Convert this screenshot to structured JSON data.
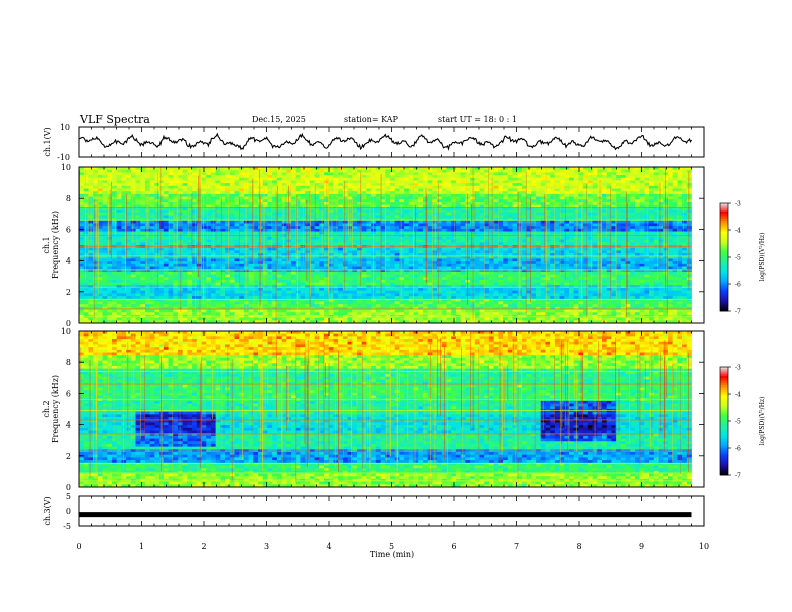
{
  "header": {
    "title": "VLF Spectra",
    "date": "Dec.15, 2025",
    "station": "station= KAP",
    "start_ut": "start  UT =   18: 0  : 1"
  },
  "colorbar": {
    "label": "log(PSD)(V²/Hz)",
    "ticks": [
      -7,
      -6,
      -5,
      -4,
      -3
    ],
    "colormap": [
      "#000000",
      "#1a10a8",
      "#0a3cff",
      "#00a8ff",
      "#00e6e6",
      "#20f0a0",
      "#40ff40",
      "#c8ff20",
      "#ffff00",
      "#ff9000",
      "#ff0000",
      "#e8e8e8"
    ]
  },
  "chart_data": [
    {
      "type": "line",
      "panel": "ch1_waveform",
      "ylabel": "ch.1(V)",
      "ylim": [
        -10,
        10
      ],
      "yticks": [
        10,
        -10
      ],
      "xlim": [
        0,
        10
      ],
      "series": [
        {
          "name": "ch.1",
          "x_range": [
            0,
            9.8
          ],
          "mean": 0,
          "amplitude_V": 3.5
        }
      ]
    },
    {
      "type": "heatmap",
      "panel": "ch1_spectrogram",
      "ylabel": "ch.1",
      "ylabel2": "Frequency  (kHz)",
      "ylim": [
        0,
        10
      ],
      "yticks": [
        0,
        2,
        4,
        6,
        8,
        10
      ],
      "xlim": [
        0,
        10
      ],
      "data_xmax": 9.8,
      "zlim": [
        -7,
        -3
      ],
      "bands": [
        {
          "f0": 0.0,
          "f1": 0.9,
          "level": -4.6
        },
        {
          "f0": 0.9,
          "f1": 1.5,
          "level": -4.9
        },
        {
          "f0": 1.5,
          "f1": 2.4,
          "level": -5.6
        },
        {
          "f0": 2.4,
          "f1": 3.3,
          "level": -5.0
        },
        {
          "f0": 3.3,
          "f1": 4.2,
          "level": -5.8
        },
        {
          "f0": 4.2,
          "f1": 5.0,
          "level": -5.6
        },
        {
          "f0": 5.0,
          "f1": 5.8,
          "level": -5.3
        },
        {
          "f0": 5.8,
          "f1": 6.6,
          "level": -6.0
        },
        {
          "f0": 6.6,
          "f1": 7.4,
          "level": -5.2
        },
        {
          "f0": 7.4,
          "f1": 8.2,
          "level": -4.8
        },
        {
          "f0": 8.2,
          "f1": 10.0,
          "level": -4.4
        }
      ]
    },
    {
      "type": "heatmap",
      "panel": "ch2_spectrogram",
      "ylabel": "ch.2",
      "ylabel2": "Frequency  (kHz)",
      "ylim": [
        0,
        10
      ],
      "yticks": [
        0,
        2,
        4,
        6,
        8,
        10
      ],
      "xlim": [
        0,
        10
      ],
      "data_xmax": 9.8,
      "zlim": [
        -7,
        -3
      ],
      "bands": [
        {
          "f0": 0.0,
          "f1": 0.9,
          "level": -4.6
        },
        {
          "f0": 0.9,
          "f1": 1.6,
          "level": -5.0
        },
        {
          "f0": 1.6,
          "f1": 2.4,
          "level": -5.9
        },
        {
          "f0": 2.4,
          "f1": 3.5,
          "level": -5.2
        },
        {
          "f0": 3.5,
          "f1": 4.6,
          "level": -5.5
        },
        {
          "f0": 4.6,
          "f1": 5.5,
          "level": -5.2
        },
        {
          "f0": 5.5,
          "f1": 6.5,
          "level": -5.0
        },
        {
          "f0": 6.5,
          "f1": 7.6,
          "level": -5.1
        },
        {
          "f0": 7.6,
          "f1": 8.5,
          "level": -4.6
        },
        {
          "f0": 8.5,
          "f1": 10.0,
          "level": -4.0
        }
      ]
    },
    {
      "type": "line",
      "panel": "ch3_waveform",
      "ylabel": "ch.3(V)",
      "ylim": [
        -5,
        5
      ],
      "yticks": [
        5,
        0,
        -5
      ],
      "xlim": [
        0,
        10
      ],
      "series": [
        {
          "name": "ch.3",
          "x_range": [
            0,
            9.8
          ],
          "value": -1.2
        }
      ]
    }
  ],
  "xaxis": {
    "label": "Time  (min)",
    "ticks": [
      0,
      1,
      2,
      3,
      4,
      5,
      6,
      7,
      8,
      9,
      10
    ]
  }
}
